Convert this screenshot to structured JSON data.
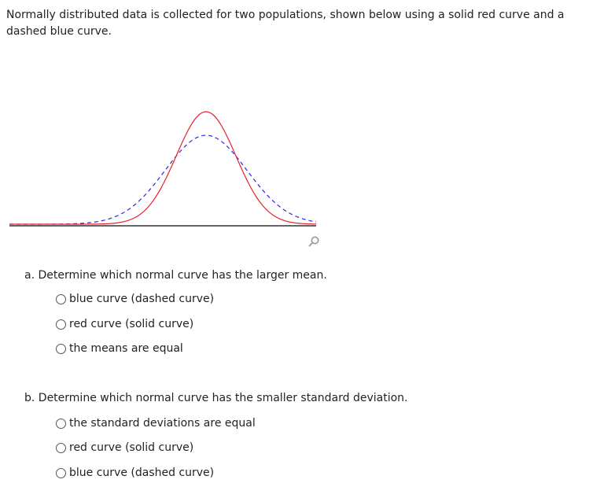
{
  "intro_text": "Normally distributed data is collected for two populations, shown below using a solid red curve and a dashed blue curve.",
  "colors": {
    "solid_curve": "#e8202a",
    "dashed_curve": "#2a2ae0",
    "axis": "#333333",
    "icon": "#999999"
  },
  "icons": {
    "zoom": "magnifier-icon"
  },
  "part_a": {
    "question": "a. Determine which normal curve has the larger mean.",
    "options": [
      "blue curve (dashed curve)",
      "red curve (solid curve)",
      "the means are equal"
    ]
  },
  "part_b": {
    "question": "b. Determine which normal curve has the smaller standard deviation.",
    "options": [
      "the standard deviations are equal",
      "red curve (solid curve)",
      "blue curve (dashed curve)"
    ]
  }
}
